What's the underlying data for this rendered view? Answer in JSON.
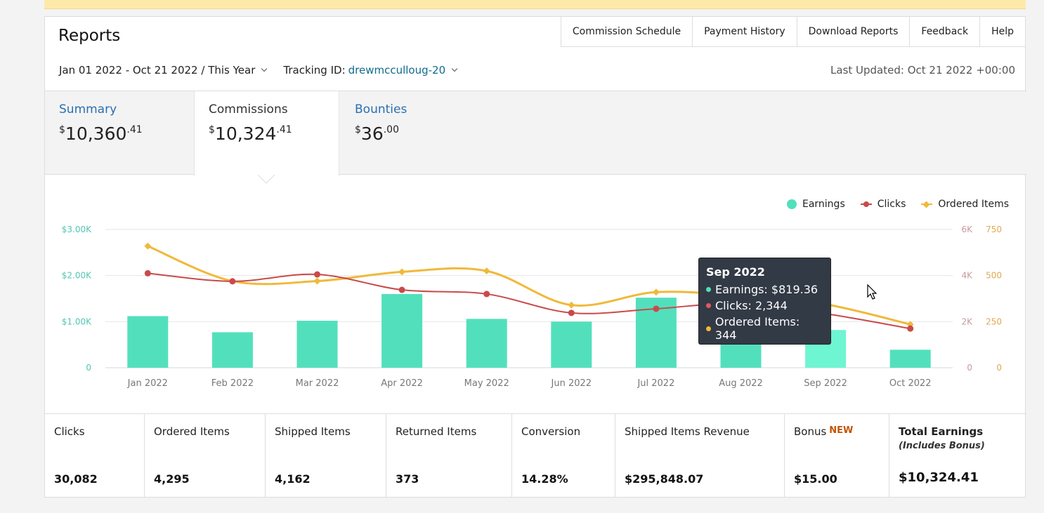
{
  "page": {
    "title": "Reports",
    "date_range": "Jan 01 2022 - Oct 21 2022 / This Year",
    "tracking_label": "Tracking ID:",
    "tracking_id": "drewmcculloug-20",
    "last_updated": "Last Updated: Oct 21 2022 +00:00"
  },
  "topnav": [
    {
      "label": "Commission Schedule"
    },
    {
      "label": "Payment History"
    },
    {
      "label": "Download Reports"
    },
    {
      "label": "Feedback"
    },
    {
      "label": "Help"
    }
  ],
  "tabs": [
    {
      "label": "Summary",
      "currency": "$",
      "whole": "10,360",
      "cents": ".41",
      "active": false
    },
    {
      "label": "Commissions",
      "currency": "$",
      "whole": "10,324",
      "cents": ".41",
      "active": true
    },
    {
      "label": "Bounties",
      "currency": "$",
      "whole": "36",
      "cents": ".00",
      "active": false
    }
  ],
  "legend": {
    "earnings": "Earnings",
    "clicks": "Clicks",
    "ordered": "Ordered Items"
  },
  "colors": {
    "earnings": "#52e0bc",
    "earnings_highlight": "#6ef5d2",
    "clicks": "#c94a4a",
    "ordered": "#f0b93a",
    "link": "#2a6fb1",
    "new_badge": "#c45500"
  },
  "chart_data": {
    "type": "bar",
    "categories": [
      "Jan 2022",
      "Feb 2022",
      "Mar 2022",
      "Apr 2022",
      "May 2022",
      "Jun 2022",
      "Jul 2022",
      "Aug 2022",
      "Sep 2022",
      "Oct 2022"
    ],
    "series": [
      {
        "name": "Earnings",
        "type": "bar",
        "axis": "left",
        "values": [
          1120,
          770,
          1020,
          1600,
          1060,
          1000,
          1520,
          980,
          819.36,
          390
        ]
      },
      {
        "name": "Clicks",
        "type": "line",
        "axis": "right1",
        "values": [
          4100,
          3750,
          4050,
          3380,
          3200,
          2380,
          2560,
          2800,
          2344,
          1700
        ]
      },
      {
        "name": "Ordered Items",
        "type": "line",
        "axis": "right2",
        "values": [
          660,
          470,
          470,
          520,
          525,
          340,
          410,
          390,
          344,
          235
        ]
      }
    ],
    "axes": {
      "left": {
        "ylim": [
          0,
          3000
        ],
        "ticks": [
          "0",
          "$1.00K",
          "$2.00K",
          "$3.00K"
        ]
      },
      "right1": {
        "ylim": [
          0,
          6000
        ],
        "ticks": [
          "0",
          "2K",
          "4K",
          "6K"
        ]
      },
      "right2": {
        "ylim": [
          0,
          750
        ],
        "ticks": [
          "0",
          "250",
          "500",
          "750"
        ]
      }
    },
    "highlight_index": 8,
    "legend_position": "top-right",
    "grid": true
  },
  "tooltip": {
    "title": "Sep 2022",
    "earnings": "Earnings: $819.36",
    "clicks": "Clicks: 2,344",
    "ordered": "Ordered Items: 344"
  },
  "stats": [
    {
      "label": "Clicks",
      "value": "30,082"
    },
    {
      "label": "Ordered Items",
      "value": "4,295"
    },
    {
      "label": "Shipped Items",
      "value": "4,162"
    },
    {
      "label": "Returned Items",
      "value": "373"
    },
    {
      "label": "Conversion",
      "value": "14.28%"
    },
    {
      "label": "Shipped Items Revenue",
      "value": "$295,848.07"
    },
    {
      "label": "Bonus",
      "badge": "NEW",
      "value": "$15.00"
    },
    {
      "label": "Total Earnings",
      "sub": "(Includes Bonus)",
      "value": "$10,324.41"
    }
  ]
}
